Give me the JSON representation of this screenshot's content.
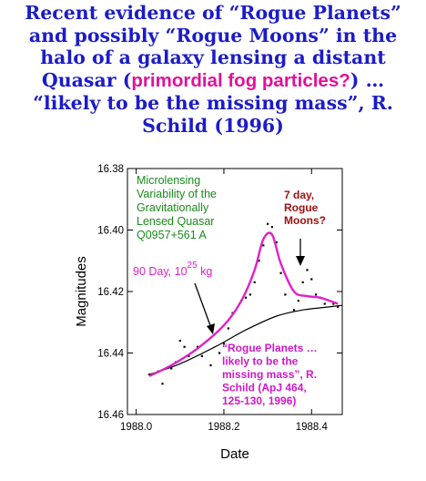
{
  "headline": {
    "line1": "Recent evidence of “Rogue Planets”",
    "line2": "and possibly “Rogue Moons” in the",
    "line3": "halo of a galaxy lensing a distant",
    "line4_before": "Quasar (",
    "line4_highlight": "primordial fog particles?",
    "line4_after": ") …",
    "line5": "“likely to be the missing mass”, R.",
    "line6": "Schild (1996)"
  },
  "colors": {
    "headline": "#1c1cc8",
    "highlight": "#e0119a",
    "annotation_green": "#1a8a1a",
    "annotation_red": "#a01010",
    "fit_curve": "#e020c8",
    "baseline_curve": "#000000",
    "data_points": "#000000"
  },
  "chart_data": {
    "type": "scatter",
    "xlabel": "Date",
    "ylabel": "Magnitudes",
    "xlim": [
      1987.98,
      1988.47
    ],
    "ylim": [
      16.38,
      16.46
    ],
    "y_inverted": true,
    "xticks": [
      "1988.0",
      "1988.2",
      "1988.4"
    ],
    "xtick_values": [
      1988.0,
      1988.2,
      1988.4
    ],
    "yticks": [
      "16.38",
      "16.40",
      "16.42",
      "16.44",
      "16.46"
    ],
    "ytick_values": [
      16.38,
      16.4,
      16.42,
      16.44,
      16.46
    ],
    "grid": false,
    "series": [
      {
        "kind": "scatter",
        "color": "#000000",
        "x": [
          1988.03,
          1988.05,
          1988.06,
          1988.08,
          1988.09,
          1988.1,
          1988.11,
          1988.12,
          1988.14,
          1988.15,
          1988.17,
          1988.19,
          1988.2,
          1988.21,
          1988.22,
          1988.24,
          1988.25,
          1988.26,
          1988.27,
          1988.28,
          1988.29,
          1988.3,
          1988.31,
          1988.32,
          1988.33,
          1988.34,
          1988.36,
          1988.37,
          1988.38,
          1988.39,
          1988.4,
          1988.41,
          1988.42,
          1988.43,
          1988.45,
          1988.46
        ],
        "y": [
          16.447,
          16.446,
          16.45,
          16.445,
          16.443,
          16.436,
          16.438,
          16.441,
          16.438,
          16.441,
          16.444,
          16.44,
          16.437,
          16.432,
          16.427,
          16.423,
          16.422,
          16.421,
          16.417,
          16.41,
          16.405,
          16.398,
          16.399,
          16.404,
          16.414,
          16.421,
          16.426,
          16.423,
          16.417,
          16.413,
          16.416,
          16.421,
          16.422,
          16.424,
          16.424,
          16.425
        ]
      },
      {
        "kind": "line",
        "color": "#e020c8",
        "x": [
          1988.03,
          1988.08,
          1988.14,
          1988.2,
          1988.24,
          1988.27,
          1988.29,
          1988.31,
          1988.33,
          1988.36,
          1988.39,
          1988.42,
          1988.46
        ],
        "y": [
          16.4475,
          16.444,
          16.4385,
          16.431,
          16.423,
          16.413,
          16.403,
          16.4015,
          16.411,
          16.42,
          16.4215,
          16.422,
          16.424
        ]
      },
      {
        "kind": "line",
        "color": "#000000",
        "x": [
          1988.03,
          1988.1,
          1988.18,
          1988.25,
          1988.32,
          1988.38,
          1988.44,
          1988.47
        ],
        "y": [
          16.447,
          16.4435,
          16.438,
          16.4325,
          16.428,
          16.426,
          16.425,
          16.4245
        ]
      }
    ],
    "annotations": {
      "green_title": [
        "Microlensing",
        "Variability of the",
        "Gravitationally",
        "Lensed Quasar",
        "Q0957+561 A"
      ],
      "red_label": [
        "7 day,",
        "Rogue",
        "Moons?"
      ],
      "mass_label_prefix": "90 Day, 10",
      "mass_label_exponent": "25",
      "mass_label_suffix": " kg",
      "magenta_quote": [
        "“Rogue Planets …",
        "likely to be the",
        "missing mass”, R.",
        "Schild (ApJ 464,",
        "125-130, 1996)"
      ]
    }
  }
}
